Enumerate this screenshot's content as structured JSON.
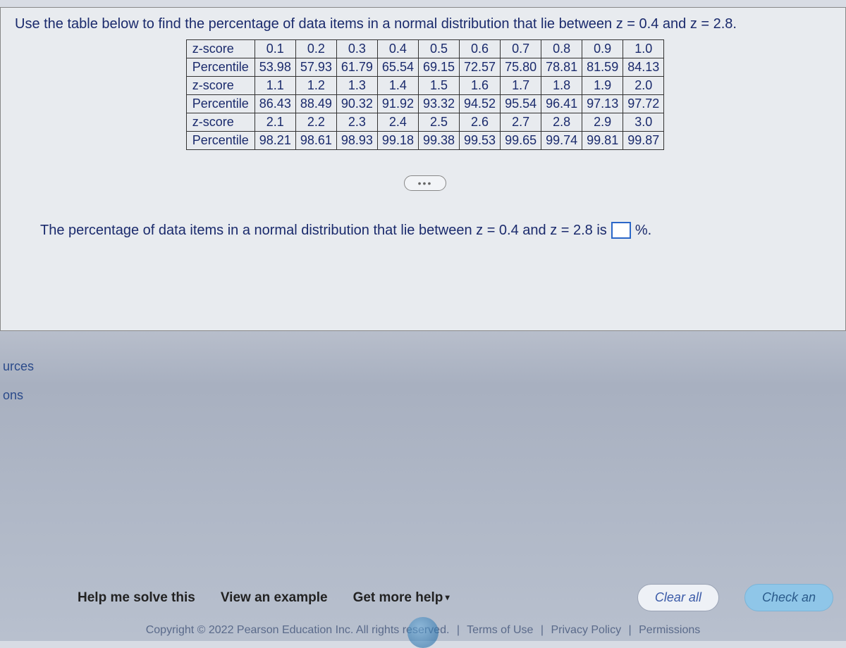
{
  "question": "Use the table below to find the percentage of data items in a normal distribution that lie between z = 0.4 and z = 2.8.",
  "table": {
    "row_header": "z-score",
    "percentile_header": "Percentile",
    "blocks": [
      {
        "z": [
          "0.1",
          "0.2",
          "0.3",
          "0.4",
          "0.5",
          "0.6",
          "0.7",
          "0.8",
          "0.9",
          "1.0"
        ],
        "p": [
          "53.98",
          "57.93",
          "61.79",
          "65.54",
          "69.15",
          "72.57",
          "75.80",
          "78.81",
          "81.59",
          "84.13"
        ]
      },
      {
        "z": [
          "1.1",
          "1.2",
          "1.3",
          "1.4",
          "1.5",
          "1.6",
          "1.7",
          "1.8",
          "1.9",
          "2.0"
        ],
        "p": [
          "86.43",
          "88.49",
          "90.32",
          "91.92",
          "93.32",
          "94.52",
          "95.54",
          "96.41",
          "97.13",
          "97.72"
        ]
      },
      {
        "z": [
          "2.1",
          "2.2",
          "2.3",
          "2.4",
          "2.5",
          "2.6",
          "2.7",
          "2.8",
          "2.9",
          "3.0"
        ],
        "p": [
          "98.21",
          "98.61",
          "98.93",
          "99.18",
          "99.38",
          "99.53",
          "99.65",
          "99.74",
          "99.81",
          "99.87"
        ]
      }
    ]
  },
  "answer_prompt": {
    "prefix": "The percentage of data items in a normal distribution that lie between z = 0.4 and z = 2.8 is",
    "suffix": "%."
  },
  "sidebar": {
    "item1": "urces",
    "item2": "ons"
  },
  "buttons": {
    "help": "Help me solve this",
    "example": "View an example",
    "more": "Get more help",
    "clear": "Clear all",
    "check": "Check an"
  },
  "footer": {
    "copyright": "Copyright © 2022 Pearson Education Inc. All rights reserved.",
    "terms": "Terms of Use",
    "privacy": "Privacy Policy",
    "permissions": "Permissions"
  }
}
